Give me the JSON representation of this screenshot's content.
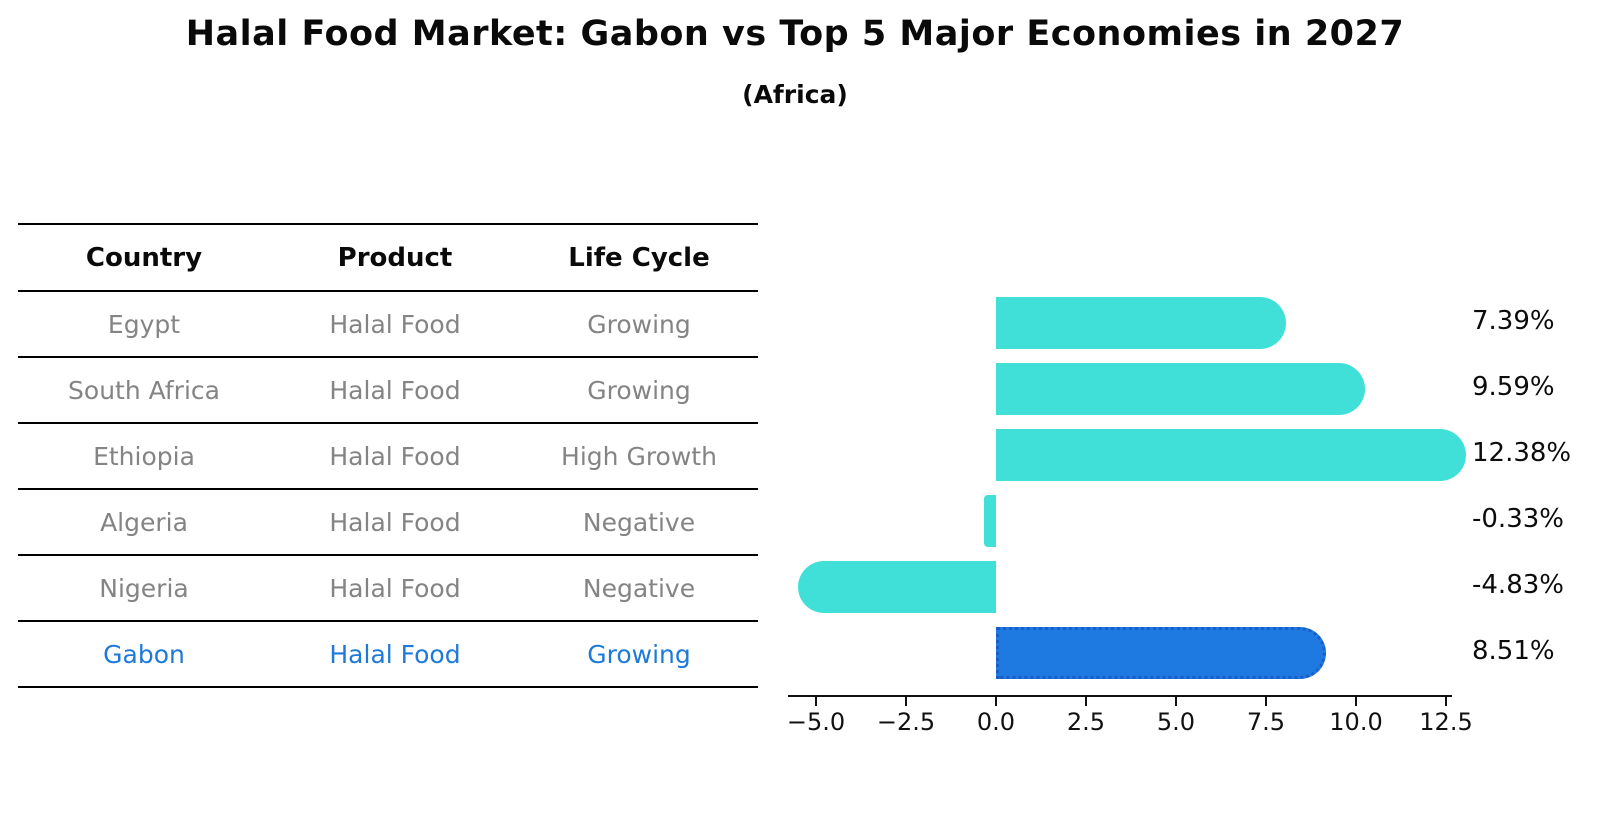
{
  "title": "Halal Food Market: Gabon vs Top 5 Major Economies in 2027",
  "subtitle": "(Africa)",
  "table": {
    "headers": [
      "Country",
      "Product",
      "Life Cycle"
    ],
    "rows": [
      {
        "country": "Egypt",
        "product": "Halal Food",
        "life_cycle": "Growing",
        "highlight": false
      },
      {
        "country": "South Africa",
        "product": "Halal Food",
        "life_cycle": "Growing",
        "highlight": false
      },
      {
        "country": "Ethiopia",
        "product": "Halal Food",
        "life_cycle": "High Growth",
        "highlight": false
      },
      {
        "country": "Algeria",
        "product": "Halal Food",
        "life_cycle": "Negative",
        "highlight": false
      },
      {
        "country": "Nigeria",
        "product": "Halal Food",
        "life_cycle": "Negative",
        "highlight": false
      },
      {
        "country": "Gabon",
        "product": "Halal Food",
        "life_cycle": "Growing",
        "highlight": true
      }
    ]
  },
  "chart_data": {
    "type": "bar",
    "orientation": "horizontal",
    "title": "Halal Food Market: Gabon vs Top 5 Major Economies in 2027",
    "subtitle": "(Africa)",
    "categories": [
      "Egypt",
      "South Africa",
      "Ethiopia",
      "Algeria",
      "Nigeria",
      "Gabon"
    ],
    "values": [
      7.39,
      9.59,
      12.38,
      -0.33,
      -4.83,
      8.51
    ],
    "value_labels": [
      "7.39%",
      "9.59%",
      "12.38%",
      "-0.33%",
      "-4.83%",
      "8.51%"
    ],
    "x_ticks": [
      "−5.0",
      "−2.5",
      "0.0",
      "2.5",
      "5.0",
      "7.5",
      "10.0",
      "12.5"
    ],
    "x_tick_values": [
      -5.0,
      -2.5,
      0.0,
      2.5,
      5.0,
      7.5,
      10.0,
      12.5
    ],
    "xlim": [
      -5.8,
      12.7
    ],
    "grid": false,
    "legend": false,
    "highlight_index": 5,
    "colors": {
      "bar_default": "#40e0d8",
      "bar_highlight": "#1e7ae0",
      "bar_highlight_border": "#1a5cc8",
      "table_text": "#848484",
      "table_highlight_text": "#1e7ad9"
    }
  }
}
